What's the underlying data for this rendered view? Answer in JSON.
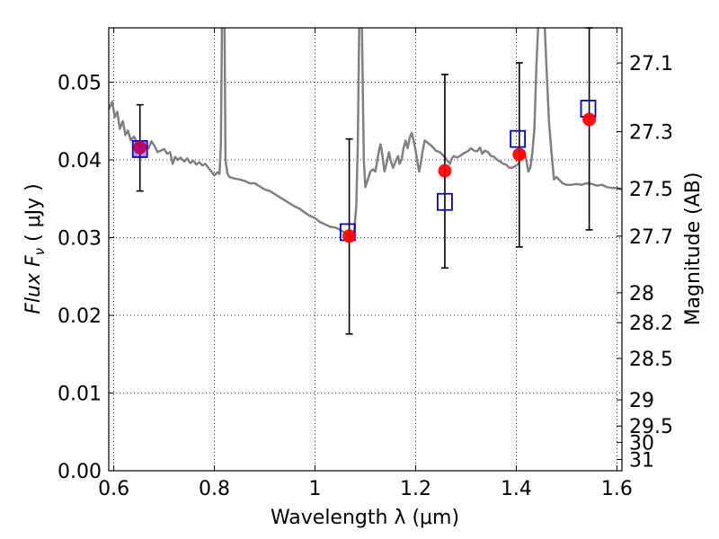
{
  "chart_data": {
    "type": "scatter",
    "title": "",
    "xlabel": "Wavelength  λ (μm)",
    "ylabel_left": "Flux  F",
    "ylabel_left_sub": "ν",
    "ylabel_left_unit": "  ( μJy )",
    "ylabel_right": "Magnitude (AB)",
    "xlim": [
      0.59,
      1.61
    ],
    "ylim": [
      0.0,
      0.057
    ],
    "grid": true,
    "x_ticks": [
      {
        "value": 0.6,
        "label": "0.6"
      },
      {
        "value": 0.8,
        "label": "0.8"
      },
      {
        "value": 1.0,
        "label": "1"
      },
      {
        "value": 1.2,
        "label": "1.2"
      },
      {
        "value": 1.4,
        "label": "1.4"
      },
      {
        "value": 1.6,
        "label": "1.6"
      }
    ],
    "y_ticks": [
      {
        "value": 0.0,
        "label": "0.00"
      },
      {
        "value": 0.01,
        "label": "0.01"
      },
      {
        "value": 0.02,
        "label": "0.02"
      },
      {
        "value": 0.03,
        "label": "0.03"
      },
      {
        "value": 0.04,
        "label": "0.04"
      },
      {
        "value": 0.05,
        "label": "0.05"
      }
    ],
    "mag_ticks": [
      {
        "mag": 27.1,
        "label": "27.1"
      },
      {
        "mag": 27.3,
        "label": "27.3"
      },
      {
        "mag": 27.5,
        "label": "27.5"
      },
      {
        "mag": 27.7,
        "label": "27.7"
      },
      {
        "mag": 28.0,
        "label": "28"
      },
      {
        "mag": 28.2,
        "label": "28.2"
      },
      {
        "mag": 28.5,
        "label": "28.5"
      },
      {
        "mag": 29.0,
        "label": "29"
      },
      {
        "mag": 29.5,
        "label": "29.5"
      },
      {
        "mag": 30.0,
        "label": "30"
      },
      {
        "mag": 31.0,
        "label": "31"
      }
    ],
    "series": [
      {
        "name": "model-spectrum",
        "kind": "line",
        "color": "#808080",
        "points": [
          [
            0.59,
            0.0465
          ],
          [
            0.597,
            0.0475
          ],
          [
            0.602,
            0.0455
          ],
          [
            0.607,
            0.0462
          ],
          [
            0.612,
            0.044
          ],
          [
            0.618,
            0.045
          ],
          [
            0.623,
            0.0432
          ],
          [
            0.628,
            0.0438
          ],
          [
            0.634,
            0.0425
          ],
          [
            0.64,
            0.043
          ],
          [
            0.647,
            0.0422
          ],
          [
            0.652,
            0.0416
          ],
          [
            0.658,
            0.042
          ],
          [
            0.664,
            0.0418
          ],
          [
            0.669,
            0.0415
          ],
          [
            0.675,
            0.0424
          ],
          [
            0.681,
            0.0418
          ],
          [
            0.687,
            0.041
          ],
          [
            0.693,
            0.0412
          ],
          [
            0.7,
            0.0414
          ],
          [
            0.706,
            0.0408
          ],
          [
            0.712,
            0.041
          ],
          [
            0.717,
            0.0395
          ],
          [
            0.722,
            0.0404
          ],
          [
            0.727,
            0.04
          ],
          [
            0.733,
            0.0403
          ],
          [
            0.74,
            0.0398
          ],
          [
            0.746,
            0.0402
          ],
          [
            0.752,
            0.0396
          ],
          [
            0.758,
            0.0399
          ],
          [
            0.764,
            0.0394
          ],
          [
            0.77,
            0.0397
          ],
          [
            0.776,
            0.0393
          ],
          [
            0.782,
            0.0395
          ],
          [
            0.788,
            0.039
          ],
          [
            0.794,
            0.0385
          ],
          [
            0.8,
            0.038
          ],
          [
            0.806,
            0.0384
          ],
          [
            0.81,
            0.0382
          ],
          [
            0.813,
            0.042
          ],
          [
            0.815,
            0.058
          ],
          [
            0.82,
            0.058
          ],
          [
            0.822,
            0.04
          ],
          [
            0.826,
            0.0382
          ],
          [
            0.83,
            0.0378
          ],
          [
            0.84,
            0.0376
          ],
          [
            0.85,
            0.0375
          ],
          [
            0.86,
            0.0373
          ],
          [
            0.87,
            0.037
          ],
          [
            0.88,
            0.037
          ],
          [
            0.89,
            0.0366
          ],
          [
            0.9,
            0.0362
          ],
          [
            0.91,
            0.036
          ],
          [
            0.92,
            0.0356
          ],
          [
            0.93,
            0.0352
          ],
          [
            0.94,
            0.0348
          ],
          [
            0.95,
            0.0344
          ],
          [
            0.96,
            0.034
          ],
          [
            0.97,
            0.0337
          ],
          [
            0.98,
            0.0332
          ],
          [
            0.99,
            0.0328
          ],
          [
            1.0,
            0.0325
          ],
          [
            1.01,
            0.032
          ],
          [
            1.02,
            0.0317
          ],
          [
            1.03,
            0.0314
          ],
          [
            1.04,
            0.0313
          ],
          [
            1.05,
            0.031
          ],
          [
            1.06,
            0.0306
          ],
          [
            1.068,
            0.0302
          ],
          [
            1.074,
            0.0298
          ],
          [
            1.078,
            0.031
          ],
          [
            1.082,
            0.034
          ],
          [
            1.085,
            0.042
          ],
          [
            1.088,
            0.058
          ],
          [
            1.093,
            0.058
          ],
          [
            1.097,
            0.04
          ],
          [
            1.1,
            0.0365
          ],
          [
            1.105,
            0.0375
          ],
          [
            1.11,
            0.0385
          ],
          [
            1.115,
            0.0388
          ],
          [
            1.12,
            0.0385
          ],
          [
            1.124,
            0.04
          ],
          [
            1.128,
            0.0415
          ],
          [
            1.13,
            0.042
          ],
          [
            1.132,
            0.0415
          ],
          [
            1.135,
            0.04
          ],
          [
            1.138,
            0.0385
          ],
          [
            1.142,
            0.0395
          ],
          [
            1.147,
            0.041
          ],
          [
            1.15,
            0.04
          ],
          [
            1.155,
            0.039
          ],
          [
            1.16,
            0.0398
          ],
          [
            1.165,
            0.0405
          ],
          [
            1.168,
            0.0395
          ],
          [
            1.172,
            0.04
          ],
          [
            1.176,
            0.0415
          ],
          [
            1.18,
            0.0425
          ],
          [
            1.184,
            0.0415
          ],
          [
            1.188,
            0.0428
          ],
          [
            1.192,
            0.0435
          ],
          [
            1.196,
            0.0425
          ],
          [
            1.2,
            0.0412
          ],
          [
            1.204,
            0.0395
          ],
          [
            1.207,
            0.0385
          ],
          [
            1.21,
            0.0395
          ],
          [
            1.214,
            0.0412
          ],
          [
            1.218,
            0.0425
          ],
          [
            1.224,
            0.0422
          ],
          [
            1.232,
            0.0418
          ],
          [
            1.24,
            0.0412
          ],
          [
            1.248,
            0.041
          ],
          [
            1.256,
            0.0405
          ],
          [
            1.262,
            0.04
          ],
          [
            1.268,
            0.0395
          ],
          [
            1.272,
            0.0402
          ],
          [
            1.276,
            0.0405
          ],
          [
            1.282,
            0.0403
          ],
          [
            1.288,
            0.0405
          ],
          [
            1.294,
            0.0408
          ],
          [
            1.3,
            0.041
          ],
          [
            1.305,
            0.0412
          ],
          [
            1.31,
            0.0415
          ],
          [
            1.316,
            0.0412
          ],
          [
            1.322,
            0.0411
          ],
          [
            1.328,
            0.0416
          ],
          [
            1.332,
            0.0408
          ],
          [
            1.338,
            0.0412
          ],
          [
            1.344,
            0.041
          ],
          [
            1.35,
            0.0405
          ],
          [
            1.356,
            0.0404
          ],
          [
            1.362,
            0.04
          ],
          [
            1.368,
            0.0398
          ],
          [
            1.374,
            0.0395
          ],
          [
            1.38,
            0.0394
          ],
          [
            1.386,
            0.039
          ],
          [
            1.392,
            0.039
          ],
          [
            1.398,
            0.0392
          ],
          [
            1.404,
            0.0395
          ],
          [
            1.41,
            0.0405
          ],
          [
            1.416,
            0.041
          ],
          [
            1.42,
            0.04
          ],
          [
            1.424,
            0.0385
          ],
          [
            1.428,
            0.039
          ],
          [
            1.432,
            0.041
          ],
          [
            1.436,
            0.044
          ],
          [
            1.44,
            0.052
          ],
          [
            1.444,
            0.058
          ],
          [
            1.456,
            0.058
          ],
          [
            1.46,
            0.052
          ],
          [
            1.465,
            0.045
          ],
          [
            1.47,
            0.041
          ],
          [
            1.475,
            0.0375
          ],
          [
            1.48,
            0.0378
          ],
          [
            1.486,
            0.0374
          ],
          [
            1.492,
            0.037
          ],
          [
            1.5,
            0.0368
          ],
          [
            1.51,
            0.0368
          ],
          [
            1.52,
            0.0369
          ],
          [
            1.53,
            0.0368
          ],
          [
            1.54,
            0.037
          ],
          [
            1.55,
            0.0369
          ],
          [
            1.56,
            0.0367
          ],
          [
            1.57,
            0.0368
          ],
          [
            1.58,
            0.0365
          ],
          [
            1.59,
            0.0364
          ],
          [
            1.6,
            0.0364
          ],
          [
            1.61,
            0.0362
          ]
        ]
      },
      {
        "name": "observed-flux-errorbars",
        "kind": "errorbar",
        "color": "#000000",
        "points": [
          {
            "x": 0.652,
            "low": 0.036,
            "high": 0.0471
          },
          {
            "x": 1.068,
            "low": 0.0176,
            "high": 0.0427
          },
          {
            "x": 1.258,
            "low": 0.0261,
            "high": 0.051
          },
          {
            "x": 1.406,
            "low": 0.0288,
            "high": 0.0525
          },
          {
            "x": 1.545,
            "low": 0.031,
            "high": 0.057
          }
        ]
      },
      {
        "name": "observed-flux",
        "kind": "circle",
        "color": "#ff0000",
        "points": [
          {
            "x": 0.652,
            "y": 0.0416
          },
          {
            "x": 1.068,
            "y": 0.0302
          },
          {
            "x": 1.258,
            "y": 0.0386
          },
          {
            "x": 1.406,
            "y": 0.0407
          },
          {
            "x": 1.545,
            "y": 0.0452
          }
        ]
      },
      {
        "name": "model-band-flux",
        "kind": "square",
        "color": "#0000cc",
        "points": [
          {
            "x": 0.652,
            "y": 0.0414
          },
          {
            "x": 1.065,
            "y": 0.0307
          },
          {
            "x": 1.258,
            "y": 0.0346
          },
          {
            "x": 1.403,
            "y": 0.0427
          },
          {
            "x": 1.543,
            "y": 0.0466
          }
        ]
      }
    ]
  }
}
